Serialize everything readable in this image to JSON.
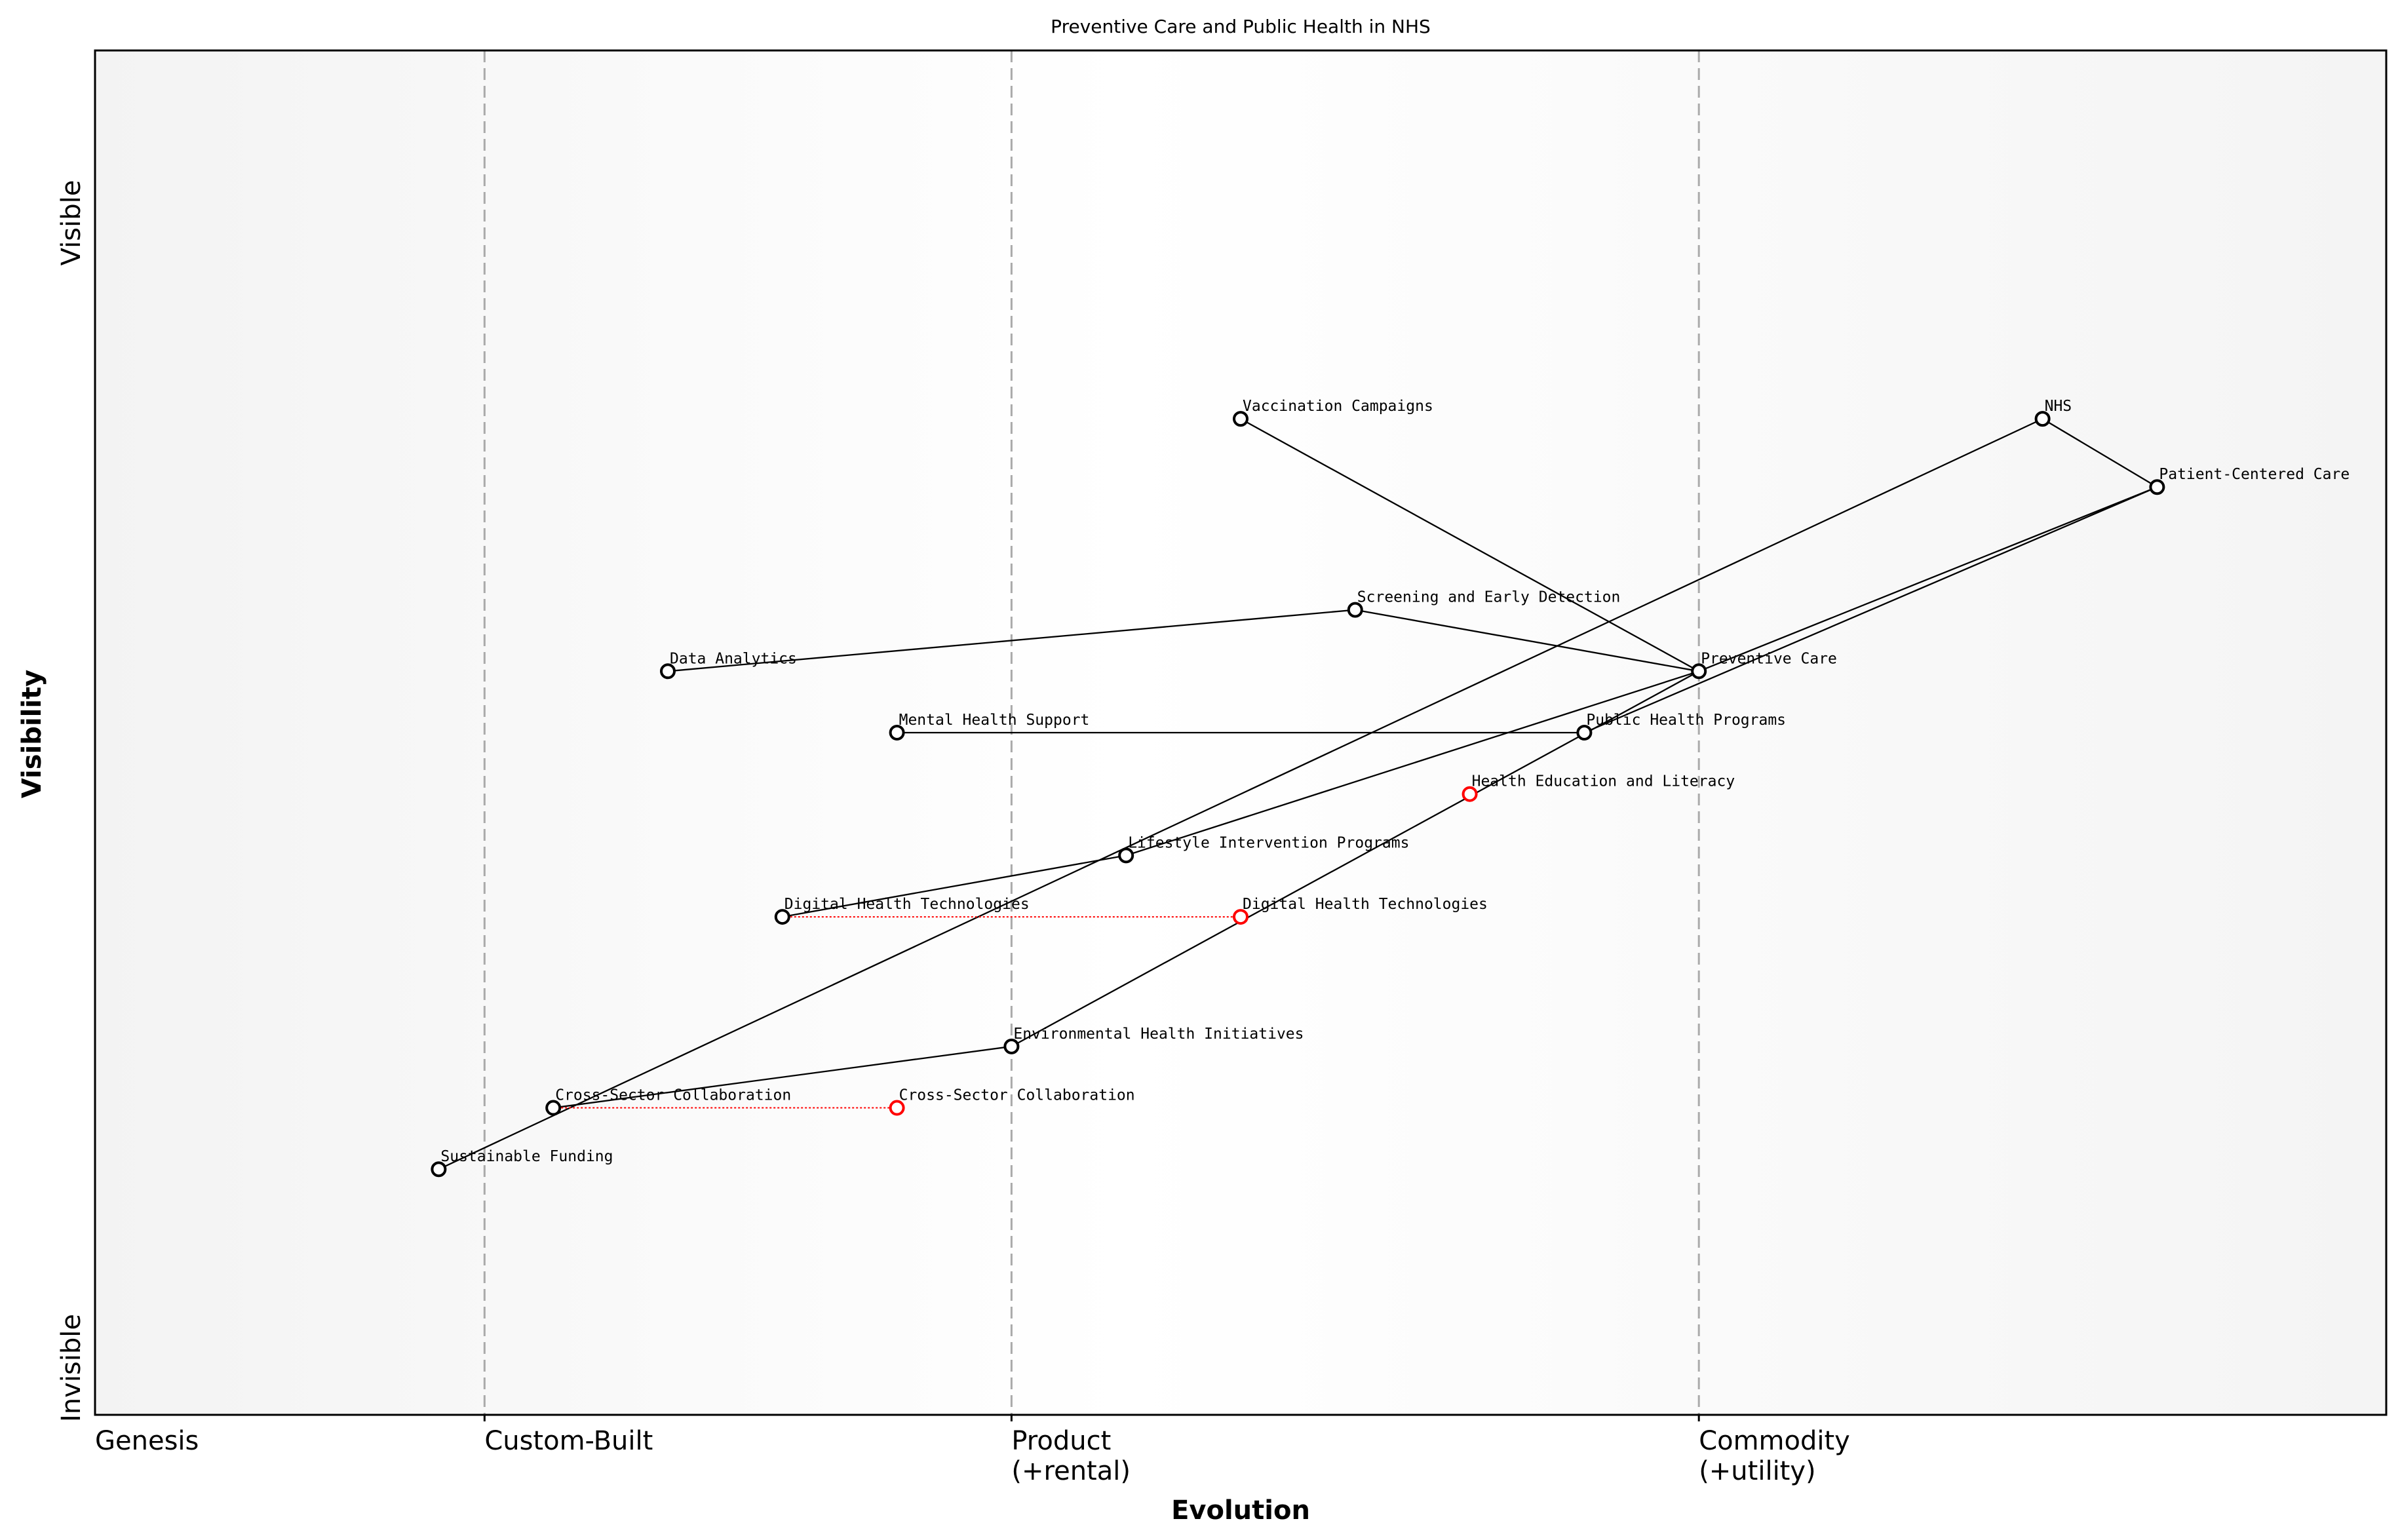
{
  "title": "Preventive Care and Public Health in NHS",
  "x_axis": {
    "label": "Evolution",
    "stages": [
      {
        "value": 0.0,
        "lines": [
          "Genesis"
        ]
      },
      {
        "value": 0.17,
        "lines": [
          "Custom-Built"
        ]
      },
      {
        "value": 0.4,
        "lines": [
          "Product",
          "(+rental)"
        ]
      },
      {
        "value": 0.7,
        "lines": [
          "Commodity",
          "(+utility)"
        ]
      }
    ]
  },
  "y_axis": {
    "label": "Visibility",
    "top_label": "Visible",
    "bottom_label": "Invisible"
  },
  "colors": {
    "node": "#000000",
    "evolved": "#ff0000",
    "stage_line": "#aaaaaa",
    "bg_edge": "#f4f4f4",
    "bg_mid": "#ffffff"
  },
  "chart_data": {
    "type": "wardley-map",
    "xlim": [
      0,
      1
    ],
    "ylim": [
      0,
      1
    ],
    "components": [
      {
        "id": "nhs",
        "name": "NHS",
        "evolution": 0.85,
        "visibility": 0.73
      },
      {
        "id": "pcc",
        "name": "Patient-Centered Care",
        "evolution": 0.9,
        "visibility": 0.68
      },
      {
        "id": "vacc",
        "name": "Vaccination Campaigns",
        "evolution": 0.5,
        "visibility": 0.73
      },
      {
        "id": "screen",
        "name": "Screening and Early Detection",
        "evolution": 0.55,
        "visibility": 0.59
      },
      {
        "id": "data",
        "name": "Data Analytics",
        "evolution": 0.25,
        "visibility": 0.545
      },
      {
        "id": "prev",
        "name": "Preventive Care",
        "evolution": 0.7,
        "visibility": 0.545
      },
      {
        "id": "mental",
        "name": "Mental Health Support",
        "evolution": 0.35,
        "visibility": 0.5
      },
      {
        "id": "php",
        "name": "Public Health Programs",
        "evolution": 0.65,
        "visibility": 0.5
      },
      {
        "id": "life",
        "name": "Lifestyle Intervention Programs",
        "evolution": 0.45,
        "visibility": 0.41
      },
      {
        "id": "digital",
        "name": "Digital Health Technologies",
        "evolution": 0.3,
        "visibility": 0.365
      },
      {
        "id": "env",
        "name": "Environmental Health Initiatives",
        "evolution": 0.4,
        "visibility": 0.27
      },
      {
        "id": "cross",
        "name": "Cross-Sector Collaboration",
        "evolution": 0.2,
        "visibility": 0.225
      },
      {
        "id": "fund",
        "name": "Sustainable Funding",
        "evolution": 0.15,
        "visibility": 0.18
      }
    ],
    "evolved": [
      {
        "name": "Health Education and Literacy",
        "evolution": 0.6,
        "visibility": 0.455
      },
      {
        "from": "digital",
        "name": "Digital Health Technologies",
        "evolution": 0.5,
        "visibility": 0.365
      },
      {
        "from": "cross",
        "name": "Cross-Sector Collaboration",
        "evolution": 0.35,
        "visibility": 0.225
      }
    ],
    "links": [
      [
        "nhs",
        "pcc"
      ],
      [
        "nhs",
        "fund"
      ],
      [
        "pcc",
        "prev"
      ],
      [
        "pcc",
        "php"
      ],
      [
        "vacc",
        "prev"
      ],
      [
        "screen",
        "prev"
      ],
      [
        "screen",
        "data"
      ],
      [
        "prev",
        "life"
      ],
      [
        "life",
        "digital"
      ],
      [
        "mental",
        "php"
      ],
      [
        "prev",
        "env"
      ],
      [
        "env",
        "cross"
      ]
    ]
  }
}
